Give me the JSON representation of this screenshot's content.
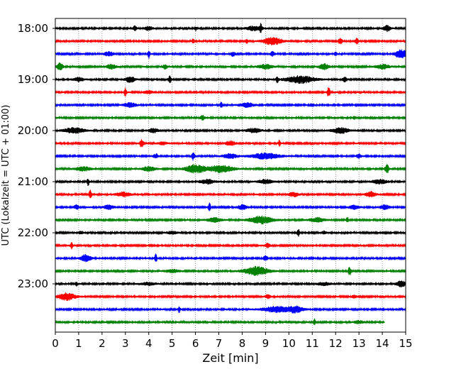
{
  "chart_data": {
    "type": "line",
    "title": "",
    "xlabel": "Zeit  [min]",
    "ylabel": "UTC (Lokalzeit = UTC + 01:00)",
    "xlim": [
      0,
      15
    ],
    "x_ticks": [
      "0",
      "1",
      "2",
      "3",
      "4",
      "5",
      "6",
      "7",
      "8",
      "9",
      "10",
      "11",
      "12",
      "13",
      "14",
      "15"
    ],
    "y_tick_labels": [
      "18:00",
      "19:00",
      "20:00",
      "21:00",
      "22:00",
      "23:00"
    ],
    "grid": "vertical dotted at each minute",
    "trace_colors": [
      "#000000",
      "#ff0000",
      "#0000ff",
      "#008000"
    ],
    "series": [
      {
        "start": "18:00",
        "color": "#000000",
        "end_min": 15,
        "base": 2,
        "events": [
          {
            "t": 3.4,
            "a": 3,
            "w": 0.08
          },
          {
            "t": 4.0,
            "a": 3,
            "w": 0.15
          },
          {
            "t": 6.0,
            "a": 3,
            "w": 0.05
          },
          {
            "t": 8.8,
            "a": 6,
            "w": 0.05
          },
          {
            "t": 8.5,
            "a": 3,
            "w": 0.3
          },
          {
            "t": 14.2,
            "a": 4,
            "w": 0.15
          }
        ]
      },
      {
        "start": "18:15",
        "color": "#ff0000",
        "end_min": 15,
        "base": 2,
        "events": [
          {
            "t": 5.9,
            "a": 3,
            "w": 0.05
          },
          {
            "t": 8.2,
            "a": 3,
            "w": 0.05
          },
          {
            "t": 9.3,
            "a": 5,
            "w": 0.4
          },
          {
            "t": 12.2,
            "a": 4,
            "w": 0.08
          },
          {
            "t": 12.9,
            "a": 4,
            "w": 0.08
          }
        ]
      },
      {
        "start": "18:30",
        "color": "#0000ff",
        "end_min": 15,
        "base": 2,
        "events": [
          {
            "t": 2.3,
            "a": 3,
            "w": 0.2
          },
          {
            "t": 4.0,
            "a": 6,
            "w": 0.05
          },
          {
            "t": 7.6,
            "a": 3,
            "w": 0.1
          },
          {
            "t": 9.3,
            "a": 3,
            "w": 0.1
          },
          {
            "t": 12.0,
            "a": 3,
            "w": 0.05
          },
          {
            "t": 14.8,
            "a": 6,
            "w": 0.25
          }
        ]
      },
      {
        "start": "18:45",
        "color": "#008000",
        "end_min": 15,
        "base": 2,
        "events": [
          {
            "t": 0.2,
            "a": 5,
            "w": 0.12
          },
          {
            "t": 2.4,
            "a": 3,
            "w": 0.2
          },
          {
            "t": 4.7,
            "a": 3,
            "w": 0.1
          },
          {
            "t": 9.0,
            "a": 3,
            "w": 0.3
          },
          {
            "t": 11.5,
            "a": 4,
            "w": 0.2
          },
          {
            "t": 14.0,
            "a": 3,
            "w": 0.3
          }
        ]
      },
      {
        "start": "19:00",
        "color": "#000000",
        "end_min": 15,
        "base": 2,
        "events": [
          {
            "t": 1.0,
            "a": 3,
            "w": 0.2
          },
          {
            "t": 3.2,
            "a": 4,
            "w": 0.2
          },
          {
            "t": 4.9,
            "a": 6,
            "w": 0.06
          },
          {
            "t": 9.5,
            "a": 5,
            "w": 0.05
          },
          {
            "t": 10.5,
            "a": 5,
            "w": 0.6
          },
          {
            "t": 12.4,
            "a": 3,
            "w": 0.1
          }
        ]
      },
      {
        "start": "19:15",
        "color": "#ff0000",
        "end_min": 15,
        "base": 2,
        "events": [
          {
            "t": 3.0,
            "a": 6,
            "w": 0.05
          },
          {
            "t": 11.7,
            "a": 7,
            "w": 0.06
          },
          {
            "t": 4.0,
            "a": 2,
            "w": 0.2
          }
        ]
      },
      {
        "start": "19:30",
        "color": "#0000ff",
        "end_min": 15,
        "base": 2,
        "events": [
          {
            "t": 3.2,
            "a": 3,
            "w": 0.25
          },
          {
            "t": 7.1,
            "a": 4,
            "w": 0.05
          },
          {
            "t": 8.2,
            "a": 3,
            "w": 0.3
          },
          {
            "t": 11.0,
            "a": 2,
            "w": 0.1
          }
        ]
      },
      {
        "start": "19:45",
        "color": "#008000",
        "end_min": 15,
        "base": 2,
        "events": [
          {
            "t": 6.3,
            "a": 3,
            "w": 0.1
          },
          {
            "t": 12.8,
            "a": 3,
            "w": 0.05
          }
        ]
      },
      {
        "start": "20:00",
        "color": "#000000",
        "end_min": 15,
        "base": 2,
        "events": [
          {
            "t": 0.8,
            "a": 4,
            "w": 0.4
          },
          {
            "t": 4.2,
            "a": 3,
            "w": 0.2
          },
          {
            "t": 8.5,
            "a": 3,
            "w": 0.3
          },
          {
            "t": 12.2,
            "a": 4,
            "w": 0.35
          }
        ]
      },
      {
        "start": "20:15",
        "color": "#ff0000",
        "end_min": 15,
        "base": 2,
        "events": [
          {
            "t": 3.7,
            "a": 6,
            "w": 0.08
          },
          {
            "t": 7.5,
            "a": 3,
            "w": 0.2
          },
          {
            "t": 9.6,
            "a": 5,
            "w": 0.04
          },
          {
            "t": 4.6,
            "a": 2,
            "w": 0.2
          }
        ]
      },
      {
        "start": "20:30",
        "color": "#0000ff",
        "end_min": 15,
        "base": 2,
        "events": [
          {
            "t": 5.9,
            "a": 6,
            "w": 0.06
          },
          {
            "t": 4.3,
            "a": 3,
            "w": 0.1
          },
          {
            "t": 7.5,
            "a": 3,
            "w": 0.3
          },
          {
            "t": 9.0,
            "a": 4,
            "w": 0.6
          },
          {
            "t": 13.0,
            "a": 3,
            "w": 0.1
          }
        ]
      },
      {
        "start": "20:45",
        "color": "#008000",
        "end_min": 15,
        "base": 2,
        "events": [
          {
            "t": 1.2,
            "a": 3,
            "w": 0.3
          },
          {
            "t": 4.0,
            "a": 3,
            "w": 0.3
          },
          {
            "t": 6.0,
            "a": 6,
            "w": 0.4
          },
          {
            "t": 7.1,
            "a": 5,
            "w": 0.5
          },
          {
            "t": 14.2,
            "a": 6,
            "w": 0.08
          }
        ]
      },
      {
        "start": "21:00",
        "color": "#000000",
        "end_min": 15,
        "base": 2,
        "events": [
          {
            "t": 1.4,
            "a": 5,
            "w": 0.05
          },
          {
            "t": 6.5,
            "a": 3,
            "w": 0.3
          },
          {
            "t": 9.0,
            "a": 3,
            "w": 0.3
          },
          {
            "t": 13.9,
            "a": 3,
            "w": 0.3
          }
        ]
      },
      {
        "start": "21:15",
        "color": "#ff0000",
        "end_min": 15,
        "base": 2,
        "events": [
          {
            "t": 1.5,
            "a": 6,
            "w": 0.06
          },
          {
            "t": 2.9,
            "a": 3,
            "w": 0.3
          },
          {
            "t": 10.2,
            "a": 3,
            "w": 0.2
          },
          {
            "t": 13.5,
            "a": 4,
            "w": 0.2
          }
        ]
      },
      {
        "start": "21:30",
        "color": "#0000ff",
        "end_min": 15,
        "base": 2,
        "events": [
          {
            "t": 0.9,
            "a": 3,
            "w": 0.1
          },
          {
            "t": 2.3,
            "a": 3,
            "w": 0.2
          },
          {
            "t": 6.6,
            "a": 6,
            "w": 0.05
          },
          {
            "t": 8.0,
            "a": 3,
            "w": 0.2
          },
          {
            "t": 12.8,
            "a": 3,
            "w": 0.2
          },
          {
            "t": 14.1,
            "a": 3,
            "w": 0.2
          }
        ]
      },
      {
        "start": "21:45",
        "color": "#008000",
        "end_min": 15,
        "base": 2,
        "events": [
          {
            "t": 6.8,
            "a": 3,
            "w": 0.3
          },
          {
            "t": 8.8,
            "a": 5,
            "w": 0.5
          },
          {
            "t": 11.2,
            "a": 3,
            "w": 0.3
          },
          {
            "t": 12.5,
            "a": 4,
            "w": 0.05
          }
        ]
      },
      {
        "start": "22:00",
        "color": "#000000",
        "end_min": 15,
        "base": 2,
        "events": [
          {
            "t": 1.1,
            "a": 2,
            "w": 0.1
          },
          {
            "t": 5.0,
            "a": 2,
            "w": 0.2
          },
          {
            "t": 10.4,
            "a": 5,
            "w": 0.06
          },
          {
            "t": 11.5,
            "a": 2,
            "w": 0.1
          }
        ]
      },
      {
        "start": "22:15",
        "color": "#ff0000",
        "end_min": 15,
        "base": 2,
        "events": [
          {
            "t": 0.7,
            "a": 5,
            "w": 0.05
          },
          {
            "t": 9.1,
            "a": 3,
            "w": 0.1
          }
        ]
      },
      {
        "start": "22:30",
        "color": "#0000ff",
        "end_min": 15,
        "base": 2,
        "events": [
          {
            "t": 1.3,
            "a": 5,
            "w": 0.2
          },
          {
            "t": 4.3,
            "a": 6,
            "w": 0.05
          },
          {
            "t": 9.0,
            "a": 3,
            "w": 0.1
          }
        ]
      },
      {
        "start": "22:45",
        "color": "#008000",
        "end_min": 15,
        "base": 2,
        "events": [
          {
            "t": 8.6,
            "a": 6,
            "w": 0.5
          },
          {
            "t": 12.6,
            "a": 6,
            "w": 0.06
          },
          {
            "t": 5.0,
            "a": 2,
            "w": 0.3
          }
        ]
      },
      {
        "start": "23:00",
        "color": "#000000",
        "end_min": 15,
        "base": 2,
        "events": [
          {
            "t": 0.9,
            "a": 3,
            "w": 0.05
          },
          {
            "t": 4.0,
            "a": 2,
            "w": 0.3
          },
          {
            "t": 11.5,
            "a": 2,
            "w": 0.3
          },
          {
            "t": 14.8,
            "a": 4,
            "w": 0.2
          }
        ]
      },
      {
        "start": "23:15",
        "color": "#ff0000",
        "end_min": 15,
        "base": 2,
        "events": [
          {
            "t": 0.5,
            "a": 5,
            "w": 0.35
          },
          {
            "t": 9.1,
            "a": 3,
            "w": 0.1
          },
          {
            "t": 12.8,
            "a": 2,
            "w": 0.1
          }
        ]
      },
      {
        "start": "23:30",
        "color": "#0000ff",
        "end_min": 15,
        "base": 2,
        "events": [
          {
            "t": 5.3,
            "a": 4,
            "w": 0.05
          },
          {
            "t": 9.5,
            "a": 4,
            "w": 0.6
          },
          {
            "t": 10.3,
            "a": 4,
            "w": 0.3
          }
        ]
      },
      {
        "start": "23:45",
        "color": "#008000",
        "end_min": 14.1,
        "base": 2,
        "events": [
          {
            "t": 11.1,
            "a": 4,
            "w": 0.05
          },
          {
            "t": 13.0,
            "a": 2,
            "w": 0.2
          }
        ]
      }
    ]
  }
}
